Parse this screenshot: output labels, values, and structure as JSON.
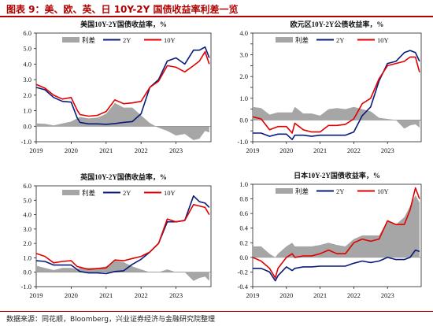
{
  "figure": {
    "title": "图表 9：美、欧、英、日 10Y-2Y 国债收益率利差一览",
    "source": "数据来源：同花顺，Bloomberg，兴业证券经济与金融研究院整理"
  },
  "colors": {
    "spread_fill": "#a6a6a6",
    "y2": "#0a1a7a",
    "y10": "#e00000",
    "accent": "#b00000"
  },
  "chart_data": [
    {
      "type": "line",
      "title": "美国10Y-2Y国债收益率，%",
      "legend": [
        "利差",
        "2Y",
        "10Y"
      ],
      "legend_position": "top-center",
      "ylim": [
        -1.0,
        6.0
      ],
      "yticks": [
        -1.0,
        0.0,
        1.0,
        2.0,
        3.0,
        4.0,
        5.0,
        6.0
      ],
      "ytick_labels": [
        "-1.0",
        "0.0",
        "1.0",
        "2.0",
        "3.0",
        "4.0",
        "5.0",
        "6.0"
      ],
      "xlim": [
        2019.0,
        2024.0
      ],
      "xticks": [
        2019,
        2020,
        2021,
        2022,
        2023
      ],
      "grid": false,
      "x": [
        2019.0,
        2019.25,
        2019.5,
        2019.75,
        2020.0,
        2020.17,
        2020.25,
        2020.5,
        2020.75,
        2021.0,
        2021.25,
        2021.5,
        2021.75,
        2022.0,
        2022.25,
        2022.5,
        2022.75,
        2023.0,
        2023.25,
        2023.5,
        2023.67,
        2023.83,
        2023.95
      ],
      "series": [
        {
          "name": "利差",
          "values": [
            0.18,
            0.15,
            0.05,
            0.18,
            0.3,
            0.5,
            0.6,
            0.5,
            0.55,
            0.8,
            1.5,
            1.2,
            1.2,
            0.7,
            0.2,
            -0.1,
            -0.3,
            -0.6,
            -0.5,
            -0.9,
            -0.8,
            -0.3,
            -0.4
          ]
        },
        {
          "name": "2Y",
          "values": [
            2.5,
            2.35,
            1.85,
            1.6,
            1.55,
            0.55,
            0.25,
            0.15,
            0.15,
            0.12,
            0.17,
            0.25,
            0.3,
            0.8,
            2.5,
            3.0,
            4.2,
            4.4,
            4.0,
            4.9,
            4.9,
            5.1,
            4.4
          ]
        },
        {
          "name": "10Y",
          "values": [
            2.7,
            2.45,
            2.0,
            1.75,
            1.85,
            1.05,
            0.75,
            0.65,
            0.7,
            0.95,
            1.7,
            1.45,
            1.5,
            1.6,
            2.5,
            2.9,
            3.9,
            3.8,
            3.5,
            3.9,
            4.2,
            4.8,
            4.0
          ]
        }
      ]
    },
    {
      "type": "line",
      "title": "欧元区10Y-2Y公债收益率，%",
      "legend": [
        "利差",
        "2Y",
        "10Y"
      ],
      "legend_position": "top-center",
      "ylim": [
        -1.0,
        4.0
      ],
      "yticks": [
        -1.0,
        -0.5,
        0.0,
        0.5,
        1.0,
        1.5,
        2.0,
        2.5,
        3.0,
        3.5,
        4.0
      ],
      "ytick_labels": [
        "-1.0",
        "",
        "0.0",
        "",
        "1.0",
        "",
        "2.0",
        "",
        "3.0",
        "",
        "4.0"
      ],
      "xlim": [
        2019.0,
        2024.0
      ],
      "xticks": [
        2019,
        2020,
        2021,
        2022,
        2023
      ],
      "grid": false,
      "x": [
        2019.0,
        2019.25,
        2019.5,
        2019.75,
        2020.0,
        2020.17,
        2020.25,
        2020.5,
        2020.75,
        2021.0,
        2021.25,
        2021.5,
        2021.75,
        2022.0,
        2022.25,
        2022.5,
        2022.75,
        2023.0,
        2023.25,
        2023.5,
        2023.67,
        2023.83,
        2023.95
      ],
      "series": [
        {
          "name": "利差",
          "values": [
            0.6,
            0.55,
            0.25,
            0.35,
            0.35,
            0.35,
            0.6,
            0.3,
            0.3,
            0.2,
            0.5,
            0.55,
            0.5,
            0.6,
            0.5,
            0.4,
            0.1,
            0.05,
            0.0,
            -0.4,
            -0.25,
            -0.2,
            -0.35
          ]
        },
        {
          "name": "2Y",
          "values": [
            -0.6,
            -0.6,
            -0.75,
            -0.65,
            -0.65,
            -0.9,
            -0.7,
            -0.7,
            -0.75,
            -0.7,
            -0.7,
            -0.7,
            -0.7,
            -0.55,
            0.2,
            0.6,
            1.8,
            2.6,
            2.7,
            3.1,
            3.2,
            3.1,
            2.7
          ]
        },
        {
          "name": "10Y",
          "values": [
            0.15,
            0.05,
            -0.45,
            -0.3,
            -0.3,
            -0.6,
            -0.15,
            -0.45,
            -0.55,
            -0.55,
            -0.25,
            -0.25,
            -0.2,
            0.05,
            0.75,
            1.0,
            1.9,
            2.5,
            2.6,
            2.7,
            2.9,
            2.9,
            2.2
          ]
        }
      ]
    },
    {
      "type": "line",
      "title": "英国10Y-2Y国债收益率，%",
      "legend": [
        "利差",
        "2Y",
        "10Y"
      ],
      "legend_position": "top-center",
      "ylim": [
        -1.0,
        6.0
      ],
      "yticks": [
        -1.0,
        0.0,
        1.0,
        2.0,
        3.0,
        4.0,
        5.0,
        6.0
      ],
      "ytick_labels": [
        "-1.0",
        "0.0",
        "1.0",
        "2.0",
        "3.0",
        "4.0",
        "5.0",
        "6.0"
      ],
      "xlim": [
        2019.0,
        2024.0
      ],
      "xticks": [
        2019,
        2020,
        2021,
        2022,
        2023
      ],
      "grid": false,
      "x": [
        2019.0,
        2019.25,
        2019.5,
        2019.75,
        2020.0,
        2020.17,
        2020.25,
        2020.5,
        2020.75,
        2021.0,
        2021.25,
        2021.5,
        2021.75,
        2022.0,
        2022.25,
        2022.5,
        2022.75,
        2023.0,
        2023.25,
        2023.5,
        2023.67,
        2023.83,
        2023.95
      ],
      "series": [
        {
          "name": "利差",
          "values": [
            0.45,
            0.3,
            0.15,
            0.3,
            0.3,
            0.2,
            0.3,
            0.3,
            0.3,
            0.4,
            0.8,
            0.7,
            0.4,
            0.2,
            0.0,
            0.0,
            0.2,
            0.0,
            0.0,
            -0.6,
            -0.4,
            -0.3,
            -0.6
          ]
        },
        {
          "name": "2Y",
          "values": [
            0.8,
            0.75,
            0.5,
            0.5,
            0.5,
            0.2,
            0.05,
            -0.05,
            -0.05,
            -0.1,
            0.05,
            0.1,
            0.55,
            0.9,
            1.4,
            2.0,
            3.5,
            3.5,
            3.6,
            5.3,
            4.9,
            4.8,
            4.5
          ]
        },
        {
          "name": "10Y",
          "values": [
            1.3,
            1.1,
            0.65,
            0.75,
            0.8,
            0.4,
            0.35,
            0.2,
            0.25,
            0.3,
            0.85,
            0.8,
            0.95,
            1.1,
            1.4,
            2.0,
            3.7,
            3.5,
            3.6,
            4.7,
            4.6,
            4.5,
            4.0
          ]
        }
      ]
    },
    {
      "type": "line",
      "title": "日本10Y-2Y国债收益率，%",
      "legend": [
        "利差",
        "2Y",
        "10Y"
      ],
      "legend_position": "top-center",
      "ylim": [
        -0.4,
        1.0
      ],
      "yticks": [
        -0.4,
        -0.2,
        0.0,
        0.2,
        0.4,
        0.6,
        0.8,
        1.0
      ],
      "ytick_labels": [
        "-0.4",
        "-0.2",
        "0.0",
        "0.2",
        "0.4",
        "0.6",
        "0.8",
        "1.0"
      ],
      "xlim": [
        2019.0,
        2024.0
      ],
      "xticks": [
        2019,
        2020,
        2021,
        2022,
        2023
      ],
      "grid": false,
      "x": [
        2019.0,
        2019.25,
        2019.5,
        2019.67,
        2019.75,
        2020.0,
        2020.17,
        2020.25,
        2020.5,
        2020.75,
        2021.0,
        2021.25,
        2021.5,
        2021.75,
        2022.0,
        2022.25,
        2022.5,
        2022.75,
        2023.0,
        2023.25,
        2023.5,
        2023.67,
        2023.83,
        2023.95
      ],
      "series": [
        {
          "name": "利差",
          "values": [
            0.15,
            0.15,
            0.05,
            0.0,
            0.05,
            0.15,
            0.2,
            0.15,
            0.15,
            0.15,
            0.17,
            0.2,
            0.17,
            0.15,
            0.25,
            0.3,
            0.3,
            0.3,
            0.5,
            0.45,
            0.55,
            0.7,
            0.85,
            0.75
          ]
        },
        {
          "name": "2Y",
          "values": [
            -0.15,
            -0.15,
            -0.2,
            -0.32,
            -0.25,
            -0.13,
            -0.18,
            -0.15,
            -0.13,
            -0.13,
            -0.12,
            -0.12,
            -0.12,
            -0.12,
            -0.08,
            -0.05,
            -0.07,
            -0.05,
            0.0,
            -0.03,
            -0.03,
            0.0,
            0.1,
            0.08
          ]
        },
        {
          "name": "10Y",
          "values": [
            0.0,
            -0.05,
            -0.15,
            -0.28,
            -0.15,
            0.0,
            0.05,
            0.0,
            0.02,
            0.02,
            0.05,
            0.1,
            0.05,
            0.05,
            0.2,
            0.25,
            0.22,
            0.25,
            0.5,
            0.45,
            0.45,
            0.65,
            0.95,
            0.8
          ]
        }
      ]
    }
  ]
}
